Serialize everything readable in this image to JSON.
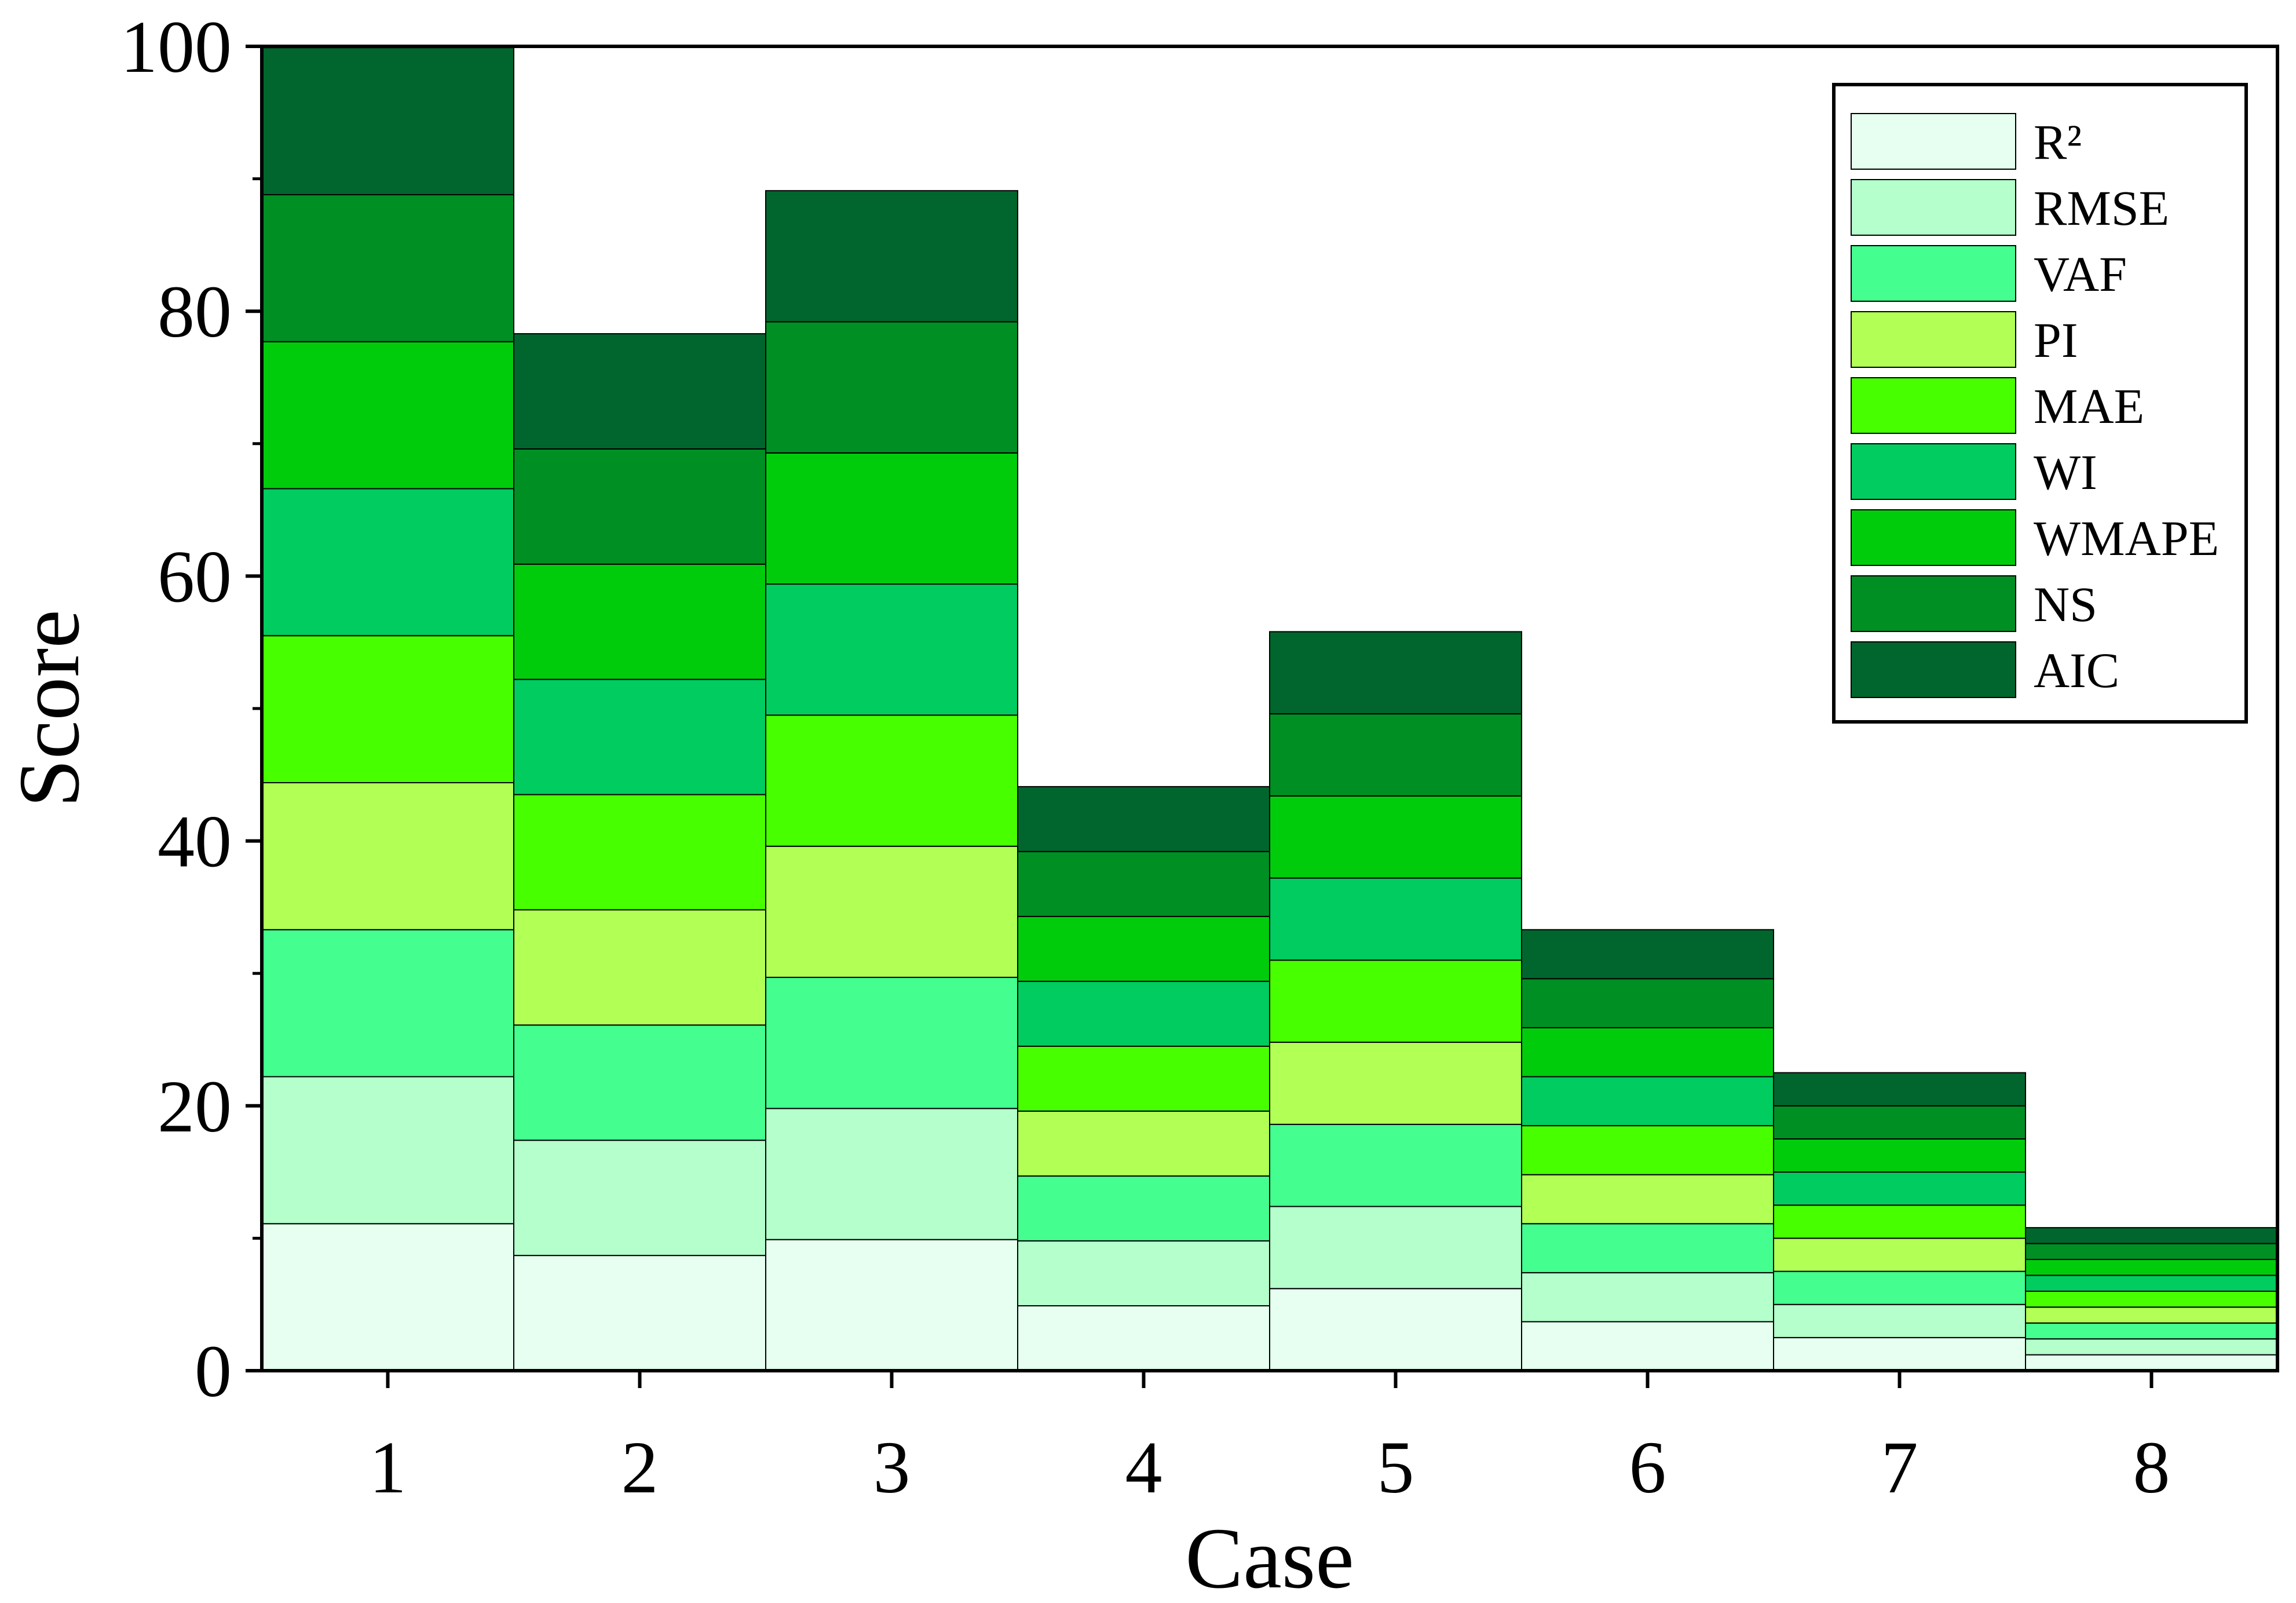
{
  "chart_data": {
    "type": "bar",
    "stacked": true,
    "title": "",
    "xlabel": "Case",
    "ylabel": "Score",
    "ylim": [
      0,
      100
    ],
    "yticks": [
      0,
      20,
      40,
      60,
      80,
      100
    ],
    "categories": [
      "1",
      "2",
      "3",
      "4",
      "5",
      "6",
      "7",
      "8"
    ],
    "legend_position": "top-right",
    "series": [
      {
        "name": "R²",
        "color": "#e6fff0",
        "values": [
          11.1,
          8.7,
          9.9,
          4.9,
          6.2,
          3.7,
          2.5,
          1.2
        ]
      },
      {
        "name": "RMSE",
        "color": "#b4ffcc",
        "values": [
          11.1,
          8.7,
          9.9,
          4.9,
          6.2,
          3.7,
          2.5,
          1.2
        ]
      },
      {
        "name": "VAF",
        "color": "#44ff90",
        "values": [
          11.1,
          8.7,
          9.9,
          4.9,
          6.2,
          3.7,
          2.5,
          1.2
        ]
      },
      {
        "name": "PI",
        "color": "#b2ff55",
        "values": [
          11.1,
          8.7,
          9.9,
          4.9,
          6.2,
          3.7,
          2.5,
          1.2
        ]
      },
      {
        "name": "MAE",
        "color": "#48ff00",
        "values": [
          11.1,
          8.7,
          9.9,
          4.9,
          6.2,
          3.7,
          2.5,
          1.2
        ]
      },
      {
        "name": "WI",
        "color": "#00cc5f",
        "values": [
          11.1,
          8.7,
          9.9,
          4.9,
          6.2,
          3.7,
          2.5,
          1.2
        ]
      },
      {
        "name": "WMAPE",
        "color": "#00cc0c",
        "values": [
          11.1,
          8.7,
          9.9,
          4.9,
          6.2,
          3.7,
          2.5,
          1.2
        ]
      },
      {
        "name": "NS",
        "color": "#008f23",
        "values": [
          11.1,
          8.7,
          9.9,
          4.9,
          6.2,
          3.7,
          2.5,
          1.2
        ]
      },
      {
        "name": "AIC",
        "color": "#00662d",
        "values": [
          11.1,
          8.7,
          9.9,
          4.9,
          6.2,
          3.7,
          2.5,
          1.2
        ]
      }
    ]
  }
}
